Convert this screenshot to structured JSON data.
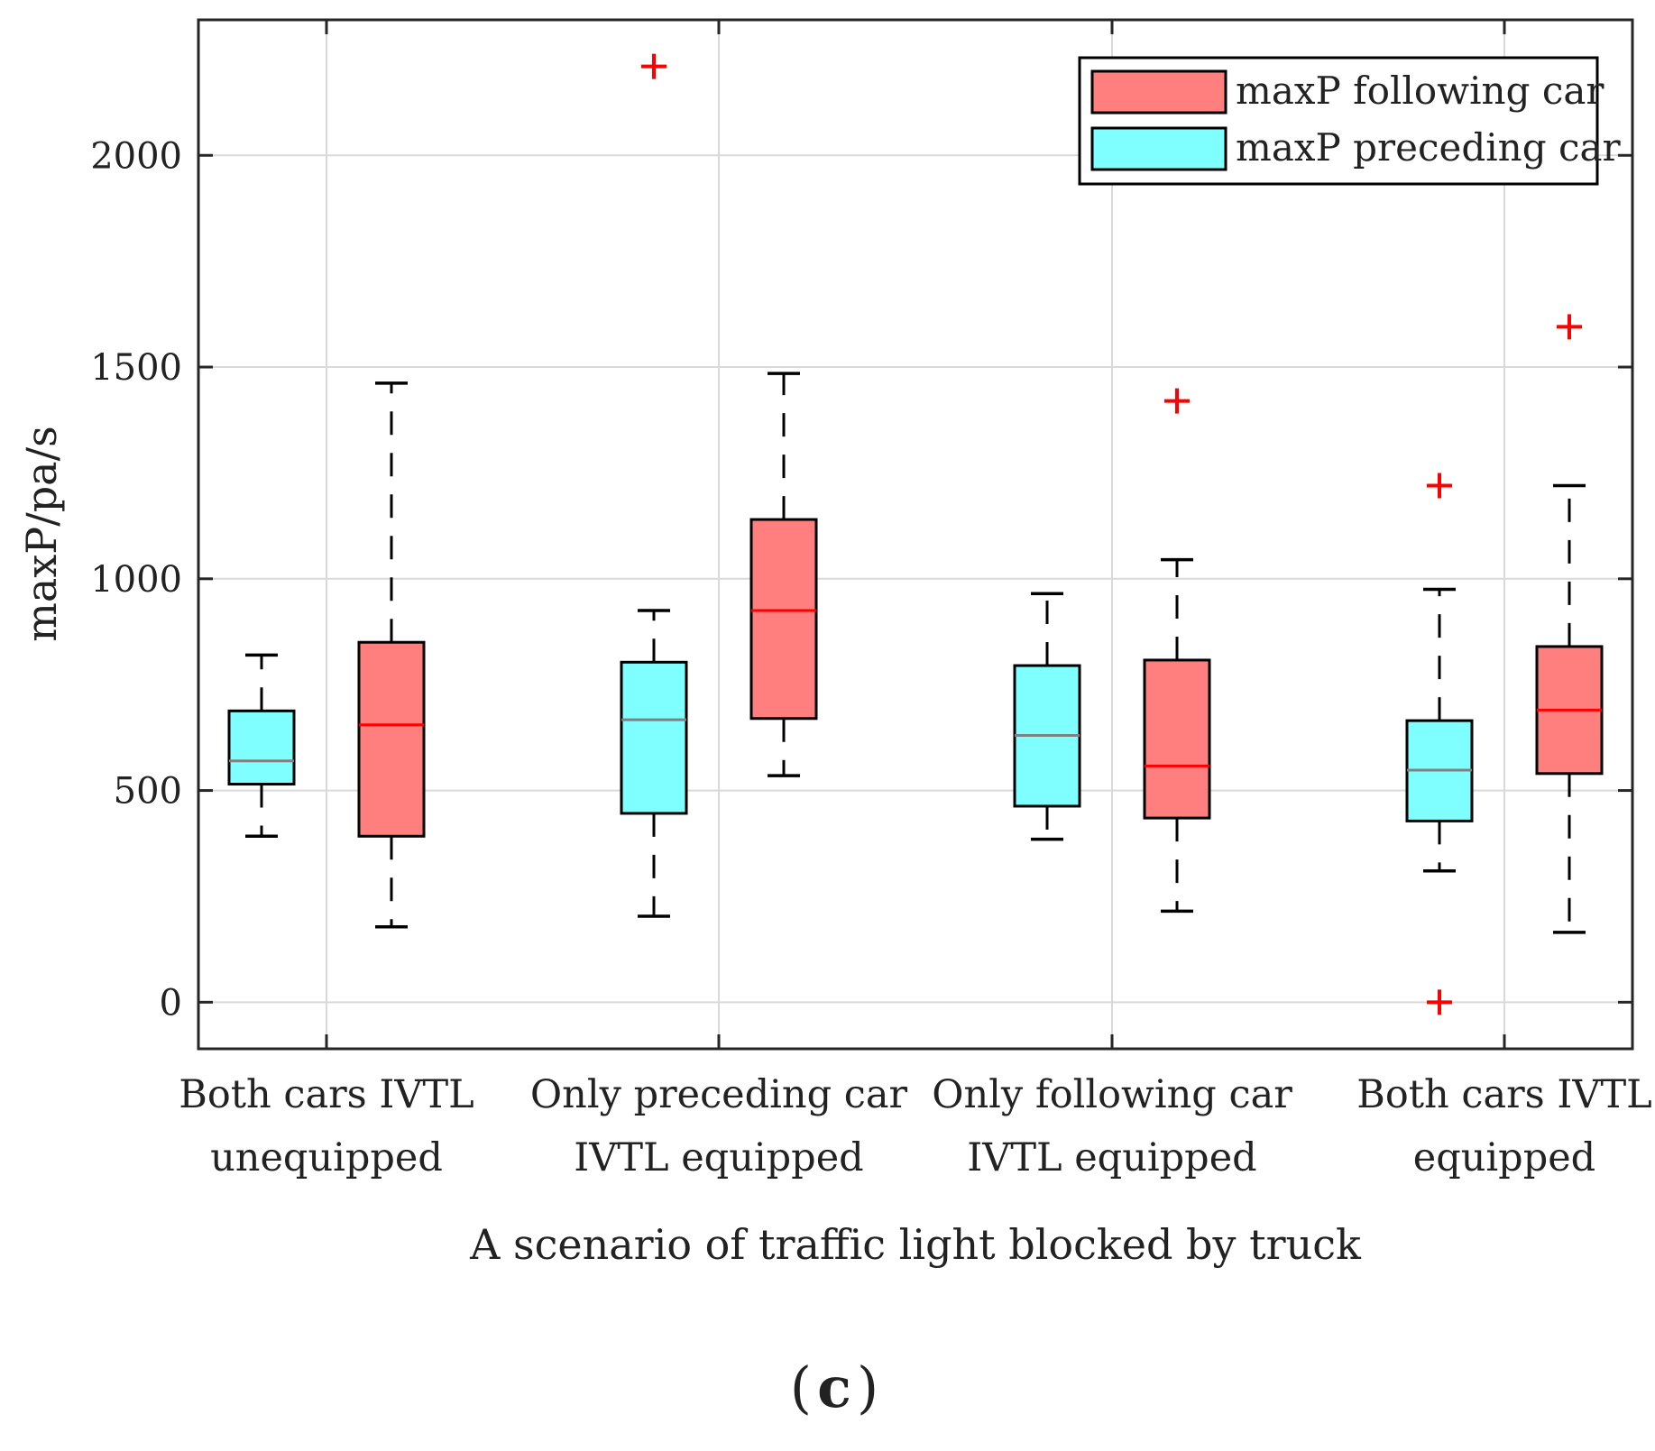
{
  "chart_data": {
    "type": "boxplot",
    "title": "",
    "xlabel": "A scenario of traffic light blocked by truck",
    "ylabel": "maxP/pa/s",
    "ylim": [
      -110,
      2320
    ],
    "yticks": [
      0,
      500,
      1000,
      1500,
      2000
    ],
    "grid": true,
    "legend_position": "top-right",
    "panel_label": "c",
    "categories": [
      [
        "Both cars IVTL",
        "unequipped"
      ],
      [
        "Only preceding car",
        "IVTL equipped"
      ],
      [
        "Only following car",
        "IVTL equipped"
      ],
      [
        "Both cars IVTL",
        "equipped"
      ]
    ],
    "series": [
      {
        "name": "maxP following car",
        "color": "#ff7f7f",
        "median_color": "#ff0000",
        "boxes": [
          {
            "whisker_low": 178,
            "q1": 392,
            "median": 655,
            "q3": 850,
            "whisker_high": 1462,
            "outliers": []
          },
          {
            "whisker_low": 535,
            "q1": 670,
            "median": 925,
            "q3": 1140,
            "whisker_high": 1485,
            "outliers": []
          },
          {
            "whisker_low": 215,
            "q1": 435,
            "median": 558,
            "q3": 808,
            "whisker_high": 1045,
            "outliers": [
              1420
            ]
          },
          {
            "whisker_low": 165,
            "q1": 540,
            "median": 690,
            "q3": 840,
            "whisker_high": 1220,
            "outliers": [
              1595
            ]
          }
        ]
      },
      {
        "name": "maxP preceding car",
        "color": "#7fffff",
        "median_color": "#808080",
        "boxes": [
          {
            "whisker_low": 392,
            "q1": 515,
            "median": 570,
            "q3": 688,
            "whisker_high": 820,
            "outliers": []
          },
          {
            "whisker_low": 203,
            "q1": 446,
            "median": 667,
            "q3": 803,
            "whisker_high": 925,
            "outliers": [
              2210
            ]
          },
          {
            "whisker_low": 385,
            "q1": 463,
            "median": 630,
            "q3": 795,
            "whisker_high": 965,
            "outliers": []
          },
          {
            "whisker_low": 310,
            "q1": 428,
            "median": 548,
            "q3": 665,
            "whisker_high": 975,
            "outliers": [
              1220,
              0
            ]
          }
        ]
      }
    ]
  }
}
